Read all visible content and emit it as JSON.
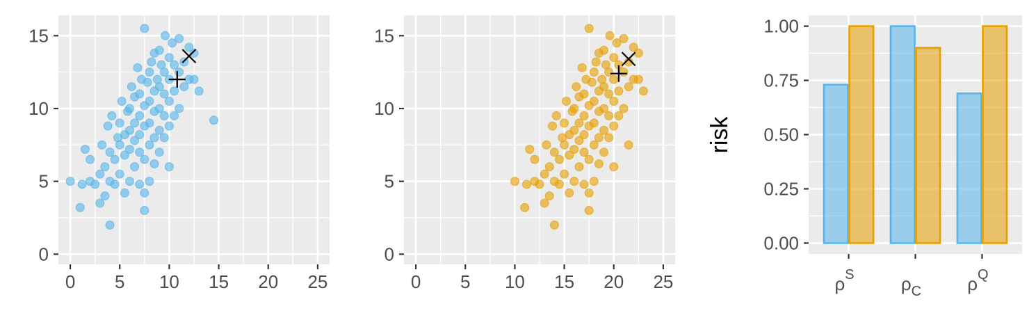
{
  "colors": {
    "panel_bg": "#EBEBEB",
    "grid": "#FFFFFF",
    "tick": "#333333",
    "tick_label": "#4D4D4D",
    "blue": "#56B4E9",
    "orange": "#E69F00",
    "marker": "#000000"
  },
  "chart_data": [
    {
      "type": "scatter",
      "series": [
        {
          "color": "#56B4E9",
          "points": [
            [
              0,
              5
            ],
            [
              1,
              3.2
            ],
            [
              1.2,
              4.8
            ],
            [
              1.5,
              7.2
            ],
            [
              2,
              6.5
            ],
            [
              2,
              5
            ],
            [
              2.5,
              4.8
            ],
            [
              3,
              3.5
            ],
            [
              3,
              5.5
            ],
            [
              3.2,
              7.5
            ],
            [
              3.5,
              4
            ],
            [
              3.5,
              6
            ],
            [
              3.8,
              8.8
            ],
            [
              4,
              2
            ],
            [
              4,
              5
            ],
            [
              4,
              7
            ],
            [
              4.2,
              9.5
            ],
            [
              4.5,
              4.8
            ],
            [
              4.5,
              6.5
            ],
            [
              4.8,
              8
            ],
            [
              5,
              5.5
            ],
            [
              5,
              7.5
            ],
            [
              5,
              9
            ],
            [
              5.2,
              10.5
            ],
            [
              5.5,
              4.2
            ],
            [
              5.5,
              6.8
            ],
            [
              5.5,
              8.2
            ],
            [
              5.8,
              9.8
            ],
            [
              6,
              5
            ],
            [
              6,
              7.2
            ],
            [
              6,
              8.5
            ],
            [
              6,
              10
            ],
            [
              6.2,
              11.5
            ],
            [
              6.5,
              6
            ],
            [
              6.5,
              7.8
            ],
            [
              6.5,
              9
            ],
            [
              6.5,
              10.8
            ],
            [
              6.8,
              12.8
            ],
            [
              7,
              4.8
            ],
            [
              7,
              7
            ],
            [
              7,
              8.2
            ],
            [
              7,
              9.5
            ],
            [
              7,
              11
            ],
            [
              7.2,
              12
            ],
            [
              7.5,
              3
            ],
            [
              7.5,
              4.2
            ],
            [
              7.5,
              6.5
            ],
            [
              7.5,
              8.8
            ],
            [
              7.5,
              10.2
            ],
            [
              7.5,
              15.5
            ],
            [
              7.8,
              11.8
            ],
            [
              8,
              5
            ],
            [
              8,
              7.5
            ],
            [
              8,
              9
            ],
            [
              8,
              10.5
            ],
            [
              8,
              12.5
            ],
            [
              8.2,
              13.2
            ],
            [
              8.5,
              6.2
            ],
            [
              8.5,
              8
            ],
            [
              8.5,
              9.8
            ],
            [
              8.5,
              11.2
            ],
            [
              8.5,
              13.8
            ],
            [
              8.8,
              12
            ],
            [
              9,
              7
            ],
            [
              9,
              8.5
            ],
            [
              9,
              10
            ],
            [
              9,
              11.5
            ],
            [
              9,
              14
            ],
            [
              9.2,
              13
            ],
            [
              9.5,
              8
            ],
            [
              9.5,
              9.5
            ],
            [
              9.5,
              11
            ],
            [
              9.5,
              12.5
            ],
            [
              9.6,
              15
            ],
            [
              10,
              6
            ],
            [
              10,
              8.8
            ],
            [
              10,
              10.5
            ],
            [
              10,
              12
            ],
            [
              10,
              13.5
            ],
            [
              10.3,
              14.5
            ],
            [
              10.5,
              9.5
            ],
            [
              10.5,
              11.2
            ],
            [
              10.5,
              13
            ],
            [
              11,
              10
            ],
            [
              11,
              12.5
            ],
            [
              11,
              14.8
            ],
            [
              11.5,
              11.5
            ],
            [
              11.5,
              13.2
            ],
            [
              12,
              12
            ],
            [
              12,
              14.2
            ],
            [
              12.5,
              13.8
            ],
            [
              12.5,
              12
            ],
            [
              13,
              11.2
            ],
            [
              14.5,
              9.2
            ]
          ],
          "markers": [
            {
              "symbol": "plus",
              "x": 10.8,
              "y": 12.0
            },
            {
              "symbol": "cross",
              "x": 12.0,
              "y": 13.6
            }
          ]
        }
      ],
      "xlim": [
        -1.2,
        26.2
      ],
      "ylim": [
        -0.7,
        16.4
      ],
      "x_ticks": [
        0,
        5,
        10,
        15,
        20,
        25
      ],
      "x_tick_labels": [
        "0",
        "5",
        "10",
        "15",
        "20",
        "25"
      ],
      "y_ticks": [
        0,
        5,
        10,
        15
      ],
      "y_tick_labels": [
        "0",
        "5",
        "10",
        "15"
      ],
      "grid": true
    },
    {
      "type": "scatter",
      "series": [
        {
          "color": "#E69F00",
          "points": [
            [
              10,
              5
            ],
            [
              11,
              3.2
            ],
            [
              11.2,
              4.8
            ],
            [
              11.5,
              7.2
            ],
            [
              12,
              6.5
            ],
            [
              12,
              5
            ],
            [
              12.5,
              4.8
            ],
            [
              13,
              3.5
            ],
            [
              13,
              5.5
            ],
            [
              13.2,
              7.5
            ],
            [
              13.5,
              4
            ],
            [
              13.5,
              6
            ],
            [
              13.8,
              8.8
            ],
            [
              14,
              2
            ],
            [
              14,
              5
            ],
            [
              14,
              7
            ],
            [
              14.2,
              9.5
            ],
            [
              14.5,
              4.8
            ],
            [
              14.5,
              6.5
            ],
            [
              14.8,
              8
            ],
            [
              15,
              5.5
            ],
            [
              15,
              7.5
            ],
            [
              15,
              9
            ],
            [
              15.2,
              10.5
            ],
            [
              15.5,
              4.2
            ],
            [
              15.5,
              6.8
            ],
            [
              15.5,
              8.2
            ],
            [
              15.8,
              9.8
            ],
            [
              16,
              5
            ],
            [
              16,
              7.2
            ],
            [
              16,
              8.5
            ],
            [
              16,
              10
            ],
            [
              16.2,
              11.5
            ],
            [
              16.5,
              6
            ],
            [
              16.5,
              7.8
            ],
            [
              16.5,
              9
            ],
            [
              16.5,
              10.8
            ],
            [
              16.8,
              12.8
            ],
            [
              17,
              4.8
            ],
            [
              17,
              7
            ],
            [
              17,
              8.2
            ],
            [
              17,
              9.5
            ],
            [
              17,
              11
            ],
            [
              17.2,
              12
            ],
            [
              17.5,
              3
            ],
            [
              17.5,
              4.2
            ],
            [
              17.5,
              6.5
            ],
            [
              17.5,
              8.8
            ],
            [
              17.5,
              10.2
            ],
            [
              17.5,
              15.5
            ],
            [
              17.8,
              11.8
            ],
            [
              18,
              5
            ],
            [
              18,
              7.5
            ],
            [
              18,
              9
            ],
            [
              18,
              10.5
            ],
            [
              18,
              12.5
            ],
            [
              18.2,
              13.2
            ],
            [
              18.5,
              6.2
            ],
            [
              18.5,
              8
            ],
            [
              18.5,
              9.8
            ],
            [
              18.5,
              11.2
            ],
            [
              18.5,
              13.8
            ],
            [
              18.8,
              12
            ],
            [
              19,
              7
            ],
            [
              19,
              8.5
            ],
            [
              19,
              10
            ],
            [
              19,
              11.5
            ],
            [
              19,
              14
            ],
            [
              19.2,
              13
            ],
            [
              19.5,
              8
            ],
            [
              19.5,
              9.5
            ],
            [
              19.5,
              11
            ],
            [
              19.5,
              12.5
            ],
            [
              19.6,
              15
            ],
            [
              20,
              6
            ],
            [
              20,
              8.8
            ],
            [
              20,
              10.5
            ],
            [
              20,
              12
            ],
            [
              20,
              13.5
            ],
            [
              20.3,
              14.5
            ],
            [
              20.5,
              9.5
            ],
            [
              20.5,
              11.2
            ],
            [
              20.5,
              13
            ],
            [
              21,
              10
            ],
            [
              21,
              12.5
            ],
            [
              21,
              14.8
            ],
            [
              21.5,
              11.5
            ],
            [
              21.5,
              13.2
            ],
            [
              22,
              12
            ],
            [
              22,
              14.2
            ],
            [
              22.5,
              13.8
            ],
            [
              22.5,
              12
            ],
            [
              23,
              11.2
            ],
            [
              21.5,
              7.5
            ]
          ],
          "markers": [
            {
              "symbol": "plus",
              "x": 20.5,
              "y": 12.4
            },
            {
              "symbol": "cross",
              "x": 21.5,
              "y": 13.4
            }
          ]
        }
      ],
      "xlim": [
        -1.2,
        26.2
      ],
      "ylim": [
        -0.7,
        16.4
      ],
      "x_ticks": [
        0,
        5,
        10,
        15,
        20,
        25
      ],
      "x_tick_labels": [
        "0",
        "5",
        "10",
        "15",
        "20",
        "25"
      ],
      "y_ticks": [
        0,
        5,
        10,
        15
      ],
      "y_tick_labels": [
        "0",
        "5",
        "10",
        "15"
      ],
      "grid": true
    },
    {
      "type": "bar",
      "categories": [
        {
          "base": "ρ",
          "sup": "S",
          "sub": ""
        },
        {
          "base": "ρ",
          "sup": "",
          "sub": "C"
        },
        {
          "base": "ρ",
          "sup": "Q",
          "sub": ""
        }
      ],
      "series": [
        {
          "color": "#56B4E9",
          "values": [
            0.73,
            1.0,
            0.69
          ]
        },
        {
          "color": "#E69F00",
          "values": [
            1.0,
            0.9,
            1.0
          ]
        }
      ],
      "ylabel": "risk",
      "ylim": [
        -0.05,
        1.05
      ],
      "y_ticks": [
        0,
        0.25,
        0.5,
        0.75,
        1.0
      ],
      "y_tick_labels": [
        "0.00",
        "0.25",
        "0.50",
        "0.75",
        "1.00"
      ],
      "grid": true
    }
  ]
}
